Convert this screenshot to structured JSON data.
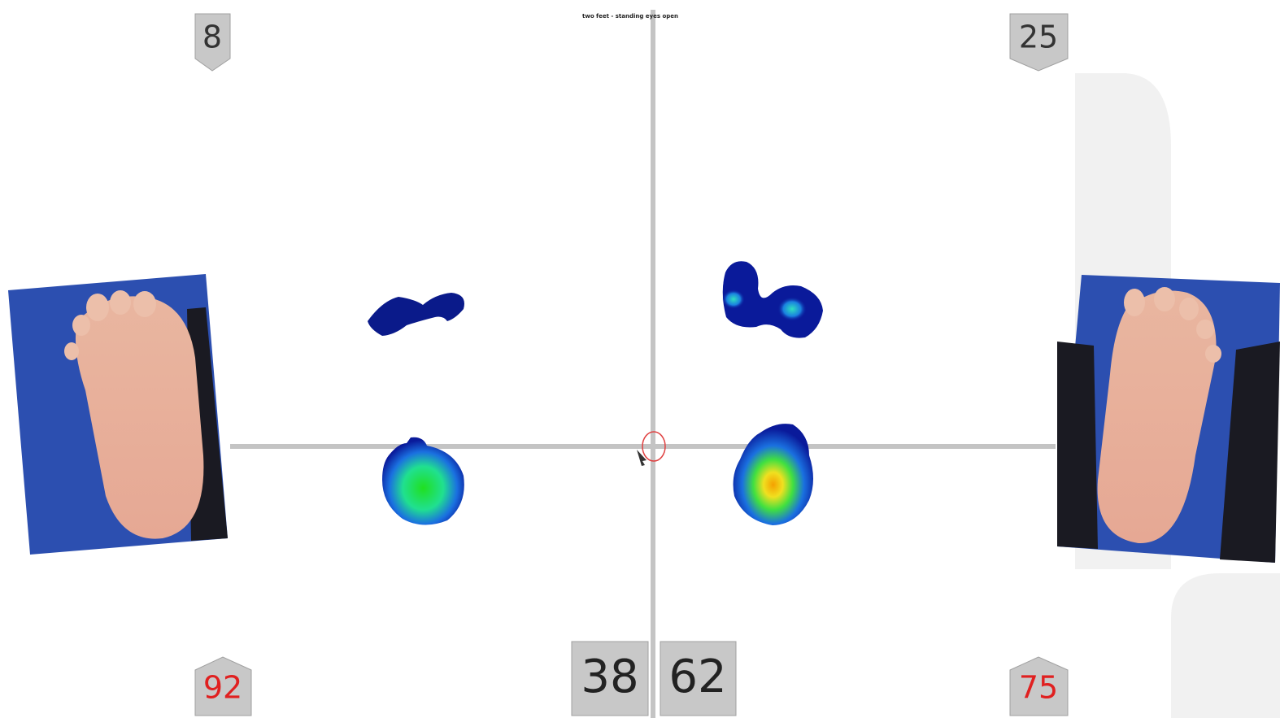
{
  "header": {
    "title": "two feet - standing eyes open"
  },
  "percentages": {
    "left_forefoot": 8,
    "right_forefoot": 25,
    "left_rearfoot": 92,
    "right_rearfoot": 75,
    "left_total": 38,
    "right_total": 62
  }
}
